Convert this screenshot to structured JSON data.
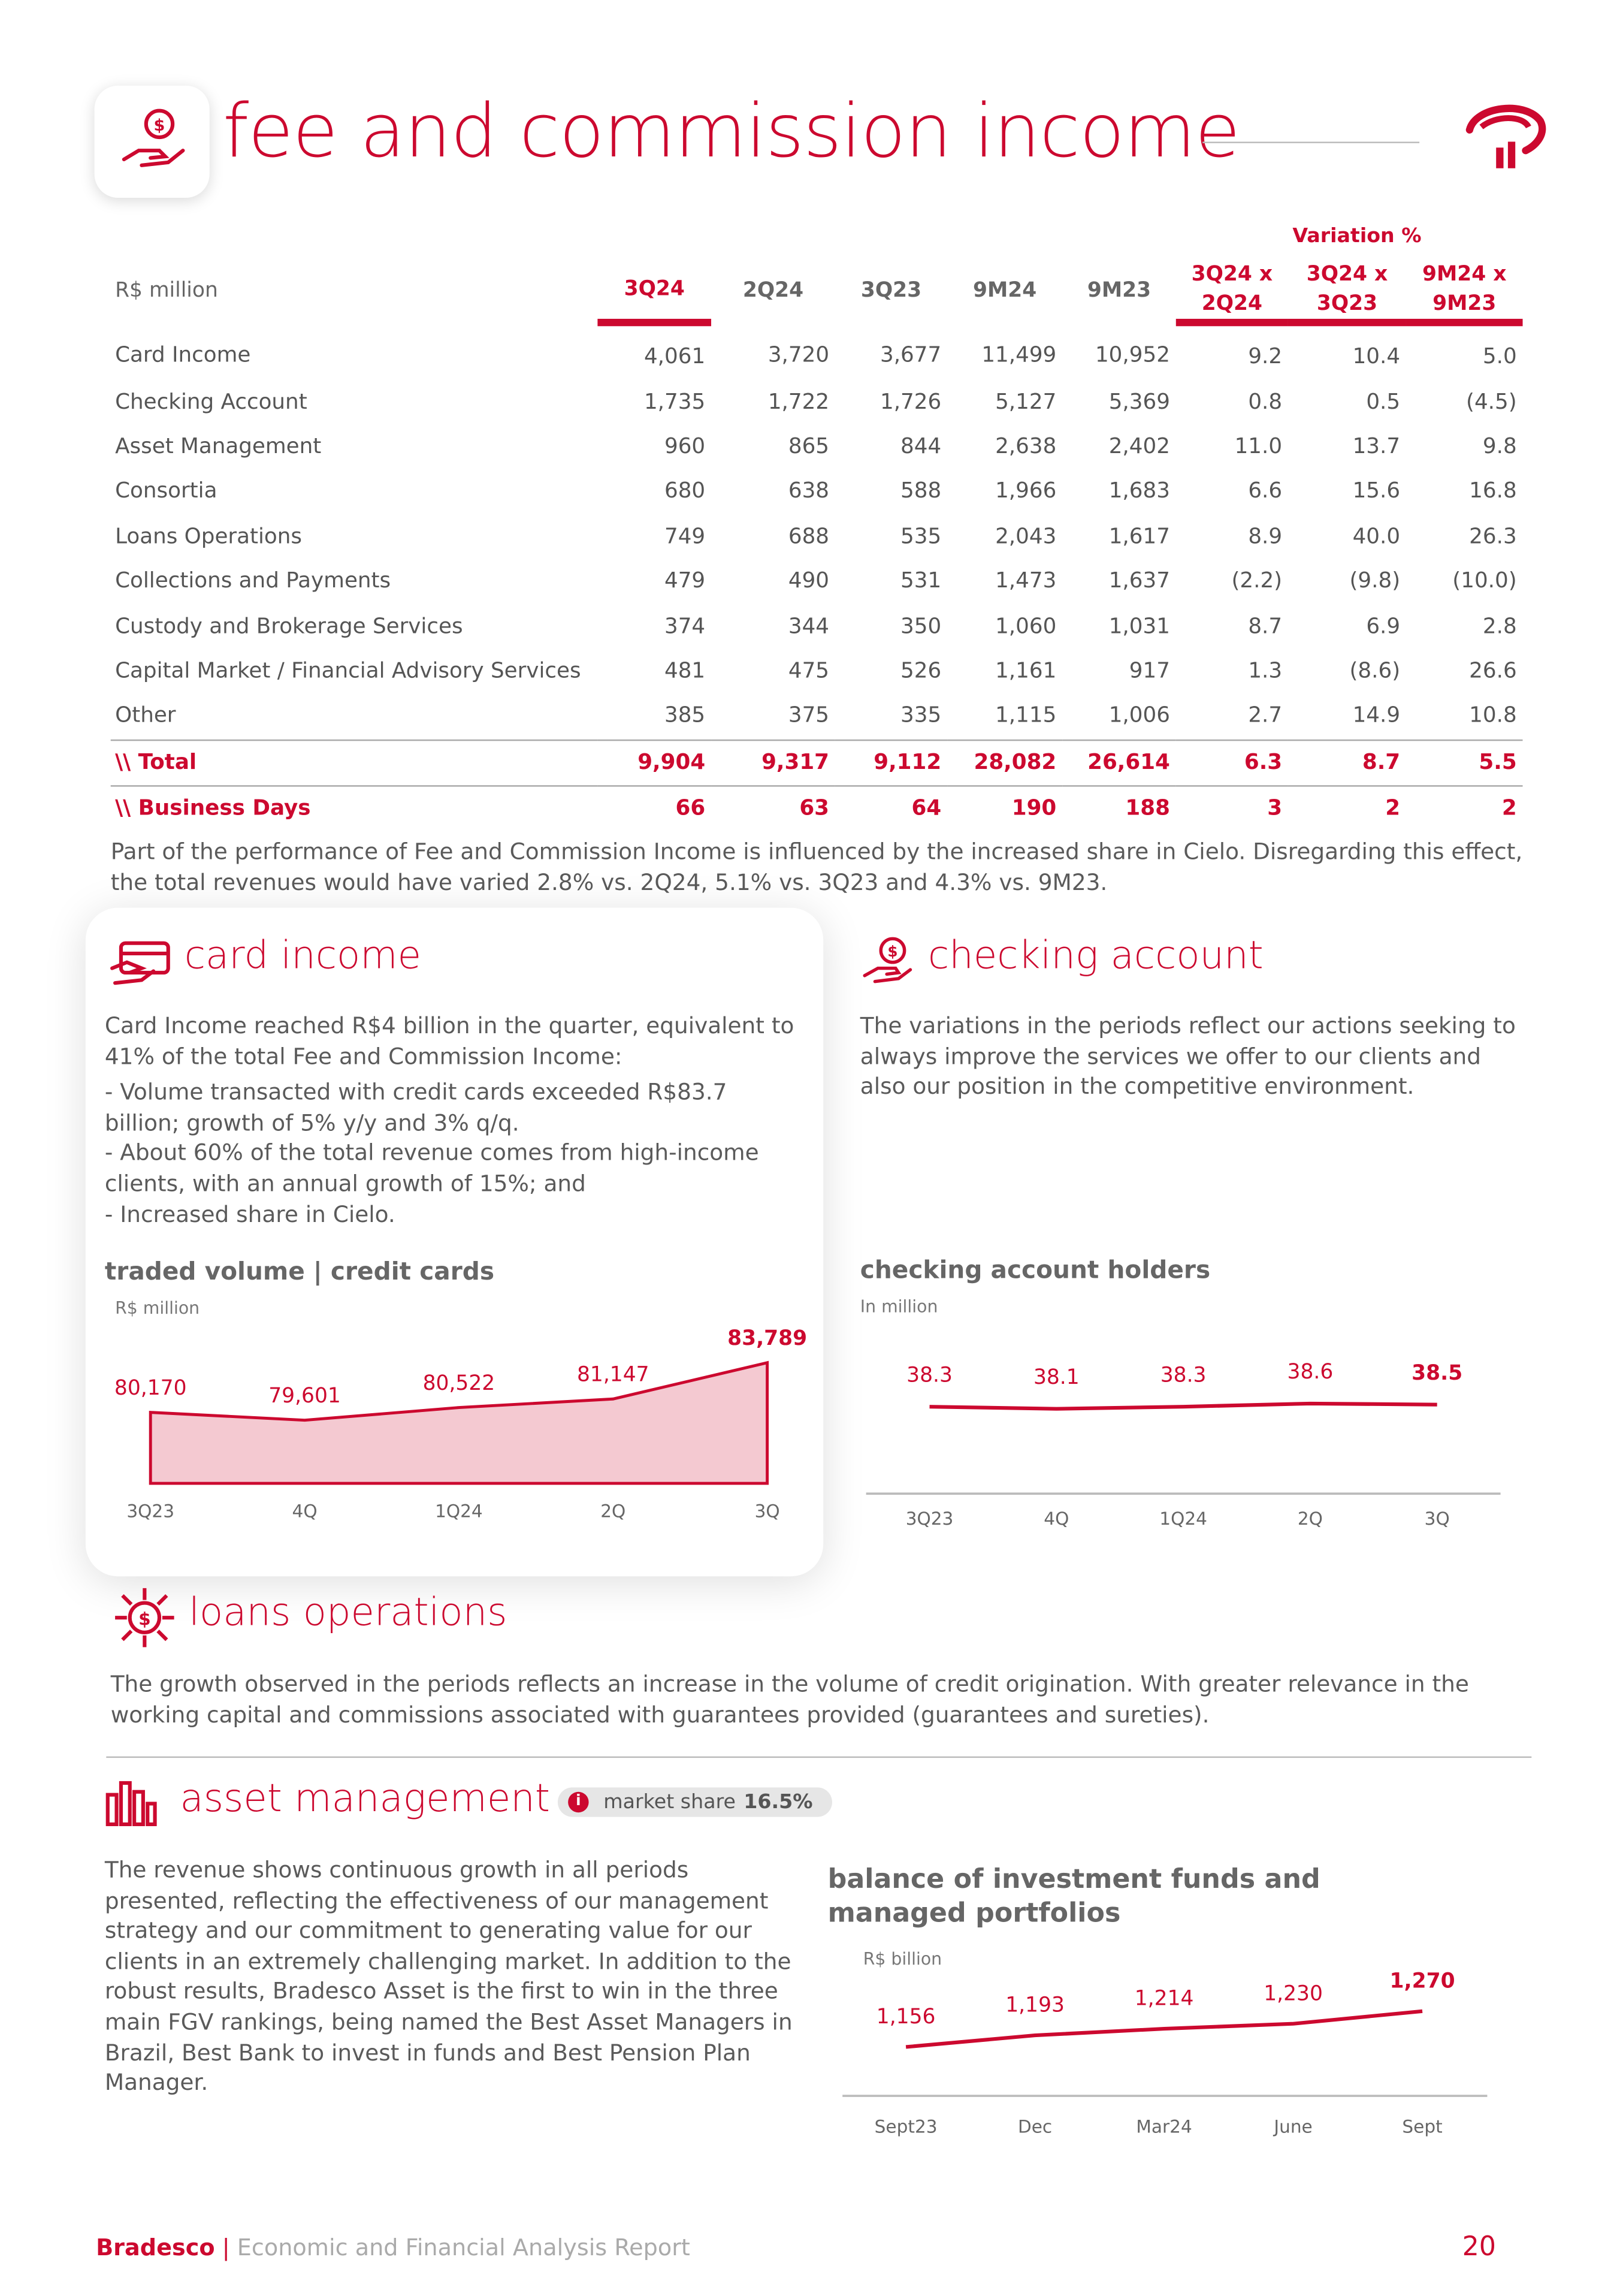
{
  "header": {
    "title": "fee and commission income"
  },
  "table": {
    "unit": "R$ million",
    "variation_label": "Variation %",
    "columns": [
      "3Q24",
      "2Q24",
      "3Q23",
      "9M24",
      "9M23",
      "3Q24 x 2Q24",
      "3Q24 x 3Q23",
      "9M24 x 9M23"
    ],
    "rows": [
      [
        "Card Income",
        "4,061",
        "3,720",
        "3,677",
        "11,499",
        "10,952",
        "9.2",
        "10.4",
        "5.0"
      ],
      [
        "Checking Account",
        "1,735",
        "1,722",
        "1,726",
        "5,127",
        "5,369",
        "0.8",
        "0.5",
        "(4.5)"
      ],
      [
        "Asset Management",
        "960",
        "865",
        "844",
        "2,638",
        "2,402",
        "11.0",
        "13.7",
        "9.8"
      ],
      [
        "Consortia",
        "680",
        "638",
        "588",
        "1,966",
        "1,683",
        "6.6",
        "15.6",
        "16.8"
      ],
      [
        "Loans Operations",
        "749",
        "688",
        "535",
        "2,043",
        "1,617",
        "8.9",
        "40.0",
        "26.3"
      ],
      [
        "Collections and Payments",
        "479",
        "490",
        "531",
        "1,473",
        "1,637",
        "(2.2)",
        "(9.8)",
        "(10.0)"
      ],
      [
        "Custody and Brokerage Services",
        "374",
        "344",
        "350",
        "1,060",
        "1,031",
        "8.7",
        "6.9",
        "2.8"
      ],
      [
        "Capital Market / Financial Advisory Services",
        "481",
        "475",
        "526",
        "1,161",
        "917",
        "1.3",
        "(8.6)",
        "26.6"
      ],
      [
        "Other",
        "385",
        "375",
        "335",
        "1,115",
        "1,006",
        "2.7",
        "14.9",
        "10.8"
      ]
    ],
    "totals": [
      [
        "\\\\ Total",
        "9,904",
        "9,317",
        "9,112",
        "28,082",
        "26,614",
        "6.3",
        "8.7",
        "5.5"
      ],
      [
        "\\\\ Business Days",
        "66",
        "63",
        "64",
        "190",
        "188",
        "3",
        "2",
        "2"
      ]
    ]
  },
  "note": "Part of the performance of Fee and Commission Income is influenced by the increased share in Cielo. Disregarding this effect, the total revenues would have varied 2.8% vs. 2Q24, 5.1% vs. 3Q23 and 4.3% vs. 9M23.",
  "card_income": {
    "title": "card income",
    "paragraphs": [
      "Card Income reached R$4 billion in the quarter, equivalent to 41% of the total Fee and Commission Income:",
      "- Volume transacted with credit cards exceeded R$83.7 billion; growth of 5% y/y and 3% q/q.",
      "- About 60% of the total revenue comes from high-income clients, with an annual growth of 15%; and",
      "- Increased share in Cielo."
    ],
    "chart": {
      "type": "area",
      "title": "traded volume | credit cards",
      "unit": "R$ million",
      "categories": [
        "3Q23",
        "4Q",
        "1Q24",
        "2Q",
        "3Q"
      ],
      "values": [
        80170,
        79601,
        80522,
        81147,
        83789
      ],
      "value_labels": [
        "80,170",
        "79,601",
        "80,522",
        "81,147",
        "83,789"
      ],
      "ylim": [
        75000,
        85000
      ],
      "color": "#cc092f"
    }
  },
  "checking_account": {
    "title": "checking account",
    "paragraphs": [
      "The variations in the periods reflect our actions seeking to always improve the services we offer to our clients and also our position in the competitive environment."
    ],
    "chart": {
      "type": "line",
      "title": "checking account holders",
      "unit": "In million",
      "categories": [
        "3Q23",
        "4Q",
        "1Q24",
        "2Q",
        "3Q"
      ],
      "values": [
        38.3,
        38.1,
        38.3,
        38.6,
        38.5
      ],
      "ylim": [
        30,
        40
      ],
      "color": "#cc092f"
    }
  },
  "loans_operations": {
    "title": "loans operations",
    "paragraphs": [
      "The growth observed in the periods reflects an increase in the volume of credit origination.  With greater relevance in the working capital and commissions associated with guarantees provided (guarantees and sureties)."
    ]
  },
  "asset_management": {
    "title": "asset management",
    "badge": {
      "label": "market share",
      "value": "16.5%"
    },
    "paragraphs": [
      "The revenue shows continuous growth in all periods presented, reflecting the effectiveness of our management strategy and our commitment to generating value for our clients in an extremely challenging market. In addition to the robust results, Bradesco Asset is the first to win in the three main FGV rankings, being named the Best Asset Managers in Brazil, Best Bank to invest in funds and Best Pension Plan Manager."
    ],
    "chart": {
      "type": "line",
      "title": "balance of investment funds and managed portfolios",
      "unit": "R$ billion",
      "categories": [
        "Sept23",
        "Dec",
        "Mar24",
        "June",
        "Sept"
      ],
      "values": [
        1156,
        1193,
        1214,
        1230,
        1270
      ],
      "value_labels": [
        "1,156",
        "1,193",
        "1,214",
        "1,230",
        "1,270"
      ],
      "ylim": [
        1000,
        1400
      ],
      "color": "#cc092f"
    }
  },
  "footer": {
    "brand": "Bradesco",
    "separator": "|",
    "report": "Economic and Financial Analysis Report",
    "page": "20"
  }
}
